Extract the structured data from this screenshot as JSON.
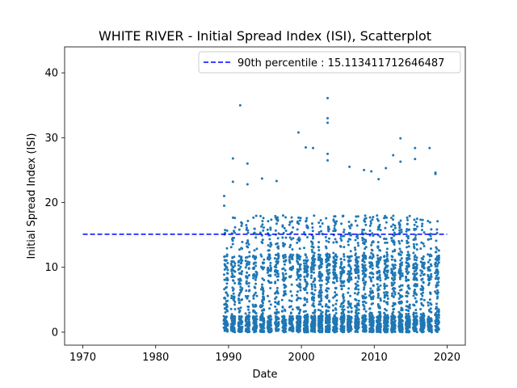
{
  "chart_data": {
    "type": "scatter",
    "title": "WHITE RIVER - Initial Spread Index (ISI), Scatterplot",
    "xlabel": "Date",
    "ylabel": "Initial Spread Index (ISI)",
    "xlim": [
      1967.5,
      2022.5
    ],
    "ylim": [
      -2.0,
      44.0
    ],
    "xticks": [
      1970,
      1980,
      1990,
      2000,
      2010,
      2020
    ],
    "xtick_labels": [
      "1970",
      "1980",
      "1990",
      "2000",
      "2010",
      "2020"
    ],
    "yticks": [
      0,
      10,
      20,
      30,
      40
    ],
    "ytick_labels": [
      "0",
      "10",
      "20",
      "30",
      "40"
    ],
    "series": [
      {
        "kind": "scatter",
        "color": "#1f77b4",
        "description_years": [
          1989,
          2018
        ],
        "notable_points": [
          {
            "x": 1989.4,
            "y": 21.0
          },
          {
            "x": 1989.4,
            "y": 19.5
          },
          {
            "x": 1990.6,
            "y": 26.8
          },
          {
            "x": 1990.6,
            "y": 23.2
          },
          {
            "x": 1991.6,
            "y": 35.0
          },
          {
            "x": 1992.6,
            "y": 26.0
          },
          {
            "x": 1992.6,
            "y": 22.8
          },
          {
            "x": 1994.6,
            "y": 23.7
          },
          {
            "x": 1996.6,
            "y": 23.3
          },
          {
            "x": 1999.6,
            "y": 30.8
          },
          {
            "x": 2000.6,
            "y": 28.5
          },
          {
            "x": 2001.6,
            "y": 28.4
          },
          {
            "x": 2003.6,
            "y": 36.1
          },
          {
            "x": 2003.6,
            "y": 33.0
          },
          {
            "x": 2003.6,
            "y": 32.3
          },
          {
            "x": 2003.6,
            "y": 27.5
          },
          {
            "x": 2003.6,
            "y": 26.5
          },
          {
            "x": 2006.6,
            "y": 25.5
          },
          {
            "x": 2008.6,
            "y": 25.0
          },
          {
            "x": 2009.6,
            "y": 24.8
          },
          {
            "x": 2010.6,
            "y": 23.6
          },
          {
            "x": 2011.6,
            "y": 25.3
          },
          {
            "x": 2012.6,
            "y": 27.3
          },
          {
            "x": 2013.6,
            "y": 29.9
          },
          {
            "x": 2013.6,
            "y": 26.3
          },
          {
            "x": 2015.6,
            "y": 28.4
          },
          {
            "x": 2015.6,
            "y": 26.7
          },
          {
            "x": 2017.6,
            "y": 28.4
          },
          {
            "x": 2018.4,
            "y": 24.6
          },
          {
            "x": 2018.4,
            "y": 24.4
          }
        ]
      }
    ],
    "reference_line": {
      "kind": "hline",
      "y": 15.113411712646487,
      "x_range": [
        1970,
        2020
      ],
      "style": "dashed",
      "color": "#0000ff"
    },
    "legend": {
      "placement": "upper right",
      "entries": [
        {
          "label": "90th percentile : 15.113411712646487",
          "style": "dashed",
          "color": "#0000ff"
        }
      ]
    },
    "grid": false
  }
}
